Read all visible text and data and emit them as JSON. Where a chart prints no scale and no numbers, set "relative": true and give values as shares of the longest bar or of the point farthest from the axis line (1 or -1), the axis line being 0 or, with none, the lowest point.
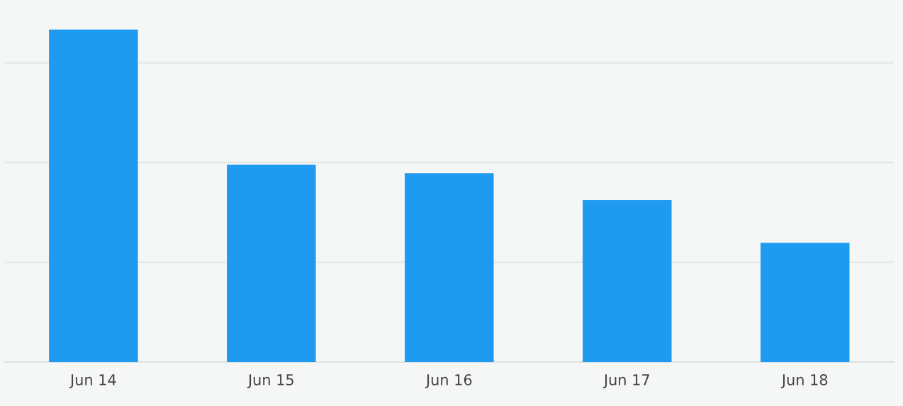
{
  "chart_data": {
    "type": "bar",
    "relative": true,
    "categories": [
      "Jun 14",
      "Jun 15",
      "Jun 16",
      "Jun 17",
      "Jun 18"
    ],
    "values": [
      1,
      0.594,
      0.568,
      0.487,
      0.359
    ],
    "color": "#1e9bf0",
    "grid": "y",
    "legend": false
  }
}
